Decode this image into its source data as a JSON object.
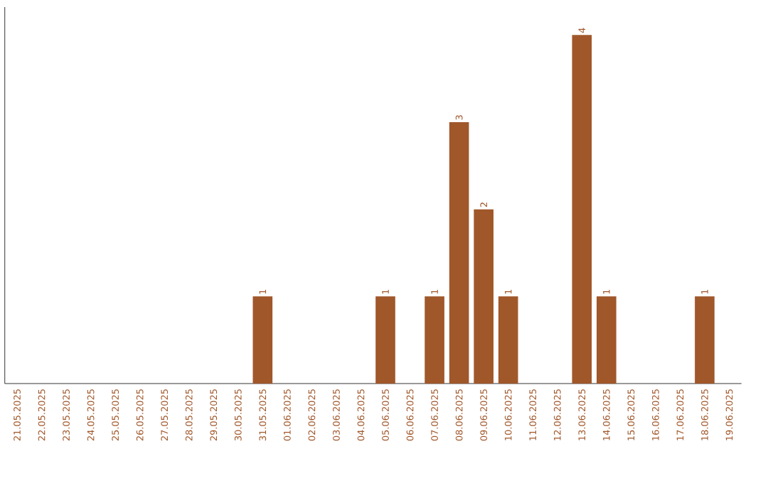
{
  "chart_data": {
    "type": "bar",
    "categories": [
      "21.05.2025",
      "22.05.2025",
      "23.05.2025",
      "24.05.2025",
      "25.05.2025",
      "26.05.2025",
      "27.05.2025",
      "28.05.2025",
      "29.05.2025",
      "30.05.2025",
      "31.05.2025",
      "01.06.2025",
      "02.06.2025",
      "03.06.2025",
      "04.06.2025",
      "05.06.2025",
      "06.06.2025",
      "07.06.2025",
      "08.06.2025",
      "09.06.2025",
      "10.06.2025",
      "11.06.2025",
      "12.06.2025",
      "13.06.2025",
      "14.06.2025",
      "15.06.2025",
      "16.06.2025",
      "17.06.2025",
      "18.06.2025",
      "19.06.2025"
    ],
    "values": [
      0,
      0,
      0,
      0,
      0,
      0,
      0,
      0,
      0,
      0,
      1,
      0,
      0,
      0,
      0,
      1,
      0,
      1,
      3,
      2,
      1,
      0,
      0,
      4,
      1,
      0,
      0,
      0,
      1,
      0
    ],
    "value_labels": [
      null,
      null,
      null,
      null,
      null,
      null,
      null,
      null,
      null,
      null,
      "1",
      null,
      null,
      null,
      null,
      "1",
      null,
      "1",
      "3",
      "2",
      "1",
      null,
      null,
      "4",
      "1",
      null,
      null,
      null,
      "1",
      null
    ],
    "color": "#a0572a"
  }
}
